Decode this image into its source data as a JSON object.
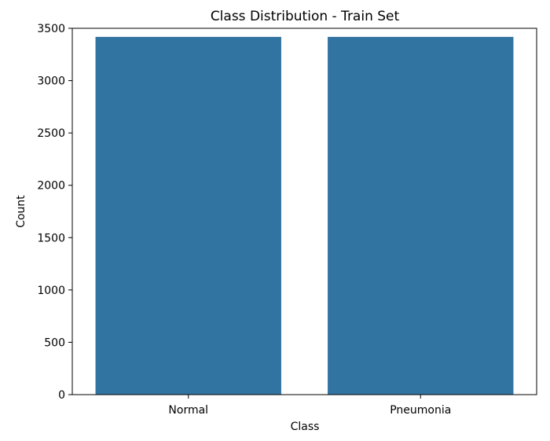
{
  "chart_data": {
    "type": "bar",
    "title": "Class Distribution - Train Set",
    "xlabel": "Class",
    "ylabel": "Count",
    "categories": [
      "Normal",
      "Pneumonia"
    ],
    "values": [
      3418,
      3418
    ],
    "ylim": [
      0,
      3500
    ],
    "yticks": [
      0,
      500,
      1000,
      1500,
      2000,
      2500,
      3000,
      3500
    ],
    "grid": false,
    "bar_color": "#3274a1"
  }
}
